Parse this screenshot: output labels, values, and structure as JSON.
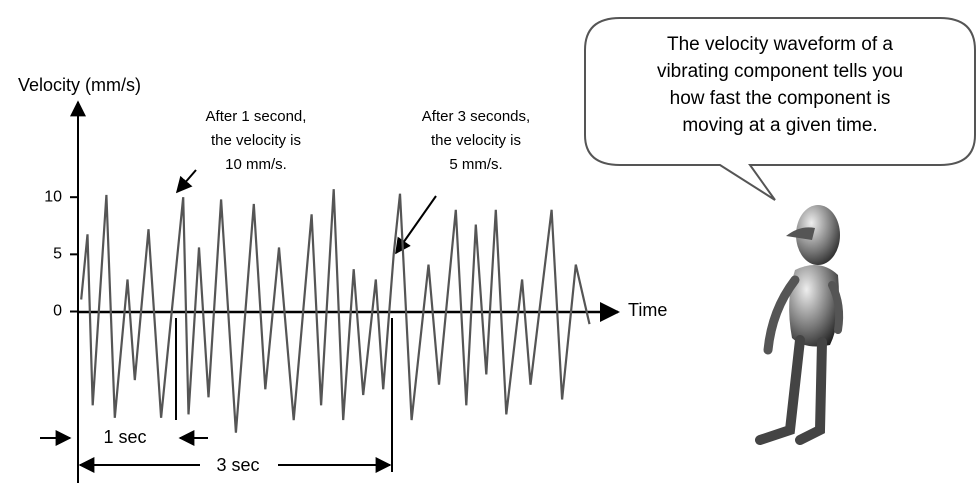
{
  "chart_data": {
    "type": "line",
    "y_label": "Velocity (mm/s)",
    "x_label": "Time",
    "x": [
      0.03,
      0.09,
      0.14,
      0.27,
      0.35,
      0.47,
      0.54,
      0.67,
      0.79,
      1.0,
      1.05,
      1.15,
      1.24,
      1.36,
      1.5,
      1.67,
      1.78,
      1.91,
      2.05,
      2.22,
      2.31,
      2.43,
      2.52,
      2.62,
      2.71,
      2.83,
      2.9,
      3.0,
      3.06,
      3.17,
      3.33,
      3.43,
      3.59,
      3.69,
      3.78,
      3.88,
      3.97,
      4.07,
      4.22,
      4.3,
      4.5,
      4.6,
      4.73,
      4.86
    ],
    "values": [
      1.05,
      6.75,
      -8.2,
      10.2,
      -9.3,
      2.8,
      -6.0,
      7.2,
      -9.3,
      10,
      -9.0,
      5.6,
      -7.5,
      9.8,
      -10.6,
      9.4,
      -6.8,
      5.6,
      -9.5,
      8.5,
      -8.2,
      10.7,
      -9.5,
      3.7,
      -7.3,
      2.8,
      -6.8,
      5,
      10.3,
      -9.5,
      4.1,
      -6.4,
      8.9,
      -8.2,
      7.6,
      -5.5,
      8.9,
      -9.0,
      2.8,
      -6.4,
      8.9,
      -7.7,
      4.1,
      -1.1
    ],
    "color": "#555555",
    "xlim": [
      0,
      5.15
    ],
    "ylim": [
      -15,
      18.5
    ],
    "yticks": [
      0,
      5,
      10
    ],
    "grid": false,
    "annotations": [
      {
        "lines": [
          "After 1 second,",
          "the velocity is",
          "10 mm/s."
        ]
      },
      {
        "lines": [
          "After 3 seconds,",
          "the velocity is",
          "5 mm/s."
        ]
      }
    ],
    "dimensions": [
      "1 sec",
      "3 sec"
    ]
  },
  "speech_bubble": {
    "lines": [
      "The velocity waveform of a",
      "vibrating component tells you",
      "how fast the component is",
      "moving at a given time."
    ]
  }
}
